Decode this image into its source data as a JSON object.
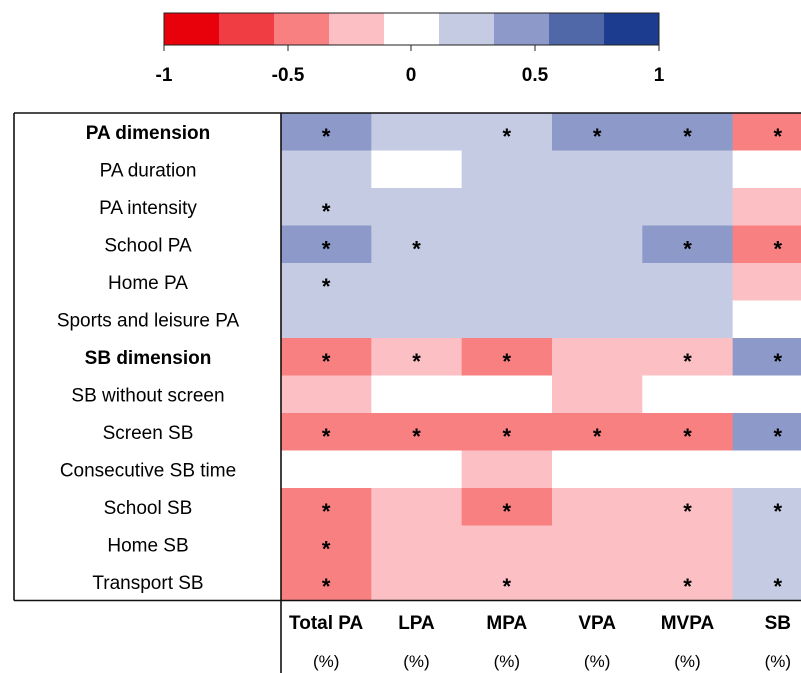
{
  "chart_data": {
    "type": "heatmap",
    "legend": {
      "ticks": [
        "-1",
        "-0.5",
        "0",
        "0.5",
        "1"
      ],
      "swatches": [
        "#e8000b",
        "#f03d44",
        "#f98080",
        "#fcc0c4",
        "#ffffff",
        "#c4cbe3",
        "#8d9ac9",
        "#5168a8",
        "#1c3d8f"
      ]
    },
    "rows": [
      {
        "label": "PA dimension",
        "bold": true
      },
      {
        "label": "PA duration",
        "bold": false
      },
      {
        "label": "PA intensity",
        "bold": false
      },
      {
        "label": "School PA",
        "bold": false
      },
      {
        "label": "Home PA",
        "bold": false
      },
      {
        "label": "Sports and leisure PA",
        "bold": false
      },
      {
        "label": "SB dimension",
        "bold": true
      },
      {
        "label": "SB without screen",
        "bold": false
      },
      {
        "label": "Screen SB",
        "bold": false
      },
      {
        "label": "Consecutive SB time",
        "bold": false
      },
      {
        "label": "School SB",
        "bold": false
      },
      {
        "label": "Home SB",
        "bold": false
      },
      {
        "label": "Transport SB",
        "bold": false
      }
    ],
    "columns": [
      {
        "label": "Total PA",
        "unit": "(%)"
      },
      {
        "label": "LPA",
        "unit": "(%)"
      },
      {
        "label": "MPA",
        "unit": "(%)"
      },
      {
        "label": "VPA",
        "unit": "(%)"
      },
      {
        "label": "MVPA",
        "unit": "(%)"
      },
      {
        "label": "SB",
        "unit": "(%)"
      }
    ],
    "bin_colors": {
      "-3": "#f98080",
      "-2": "#fcc0c4",
      "-1": "#fcc0c4",
      "0": "#ffffff",
      "1": "#c4cbe3",
      "2": "#8d9ac9"
    },
    "values": [
      [
        2,
        1,
        1,
        2,
        2,
        -3
      ],
      [
        1,
        0,
        1,
        1,
        1,
        0
      ],
      [
        1,
        1,
        1,
        1,
        1,
        -2
      ],
      [
        2,
        1,
        1,
        1,
        2,
        -3
      ],
      [
        1,
        1,
        1,
        1,
        1,
        -2
      ],
      [
        1,
        1,
        1,
        1,
        1,
        0
      ],
      [
        -3,
        -2,
        -3,
        -2,
        -2,
        2
      ],
      [
        -2,
        0,
        0,
        -2,
        0,
        0
      ],
      [
        -3,
        -3,
        -3,
        -3,
        -3,
        2
      ],
      [
        0,
        0,
        -2,
        0,
        0,
        0
      ],
      [
        -3,
        -2,
        -3,
        -2,
        -2,
        1
      ],
      [
        -3,
        -2,
        -2,
        -2,
        -2,
        1
      ],
      [
        -3,
        -2,
        -2,
        -2,
        -2,
        1
      ]
    ],
    "significant": [
      [
        1,
        0,
        1,
        1,
        1,
        1
      ],
      [
        0,
        0,
        0,
        0,
        0,
        0
      ],
      [
        1,
        0,
        0,
        0,
        0,
        0
      ],
      [
        1,
        1,
        0,
        0,
        1,
        1
      ],
      [
        1,
        0,
        0,
        0,
        0,
        0
      ],
      [
        0,
        0,
        0,
        0,
        0,
        0
      ],
      [
        1,
        1,
        1,
        0,
        1,
        1
      ],
      [
        0,
        0,
        0,
        0,
        0,
        0
      ],
      [
        1,
        1,
        1,
        1,
        1,
        1
      ],
      [
        0,
        0,
        0,
        0,
        0,
        0
      ],
      [
        1,
        0,
        1,
        0,
        1,
        1
      ],
      [
        1,
        0,
        0,
        0,
        0,
        0
      ],
      [
        1,
        0,
        1,
        0,
        1,
        1
      ]
    ],
    "significance_marker": "*"
  }
}
